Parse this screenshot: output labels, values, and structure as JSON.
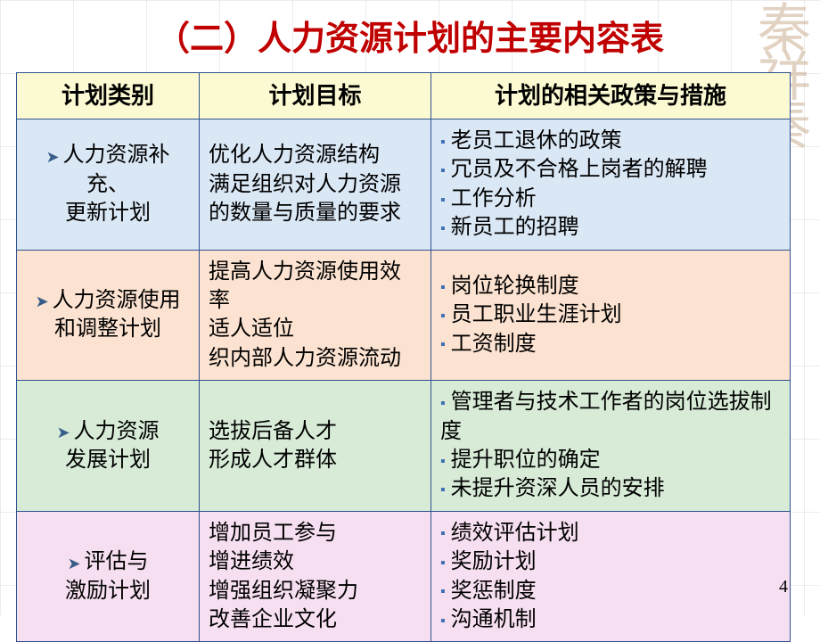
{
  "title": "（二）人力资源计划的主要内容表",
  "page_number": "4",
  "columns": {
    "c1": "计划类别",
    "c2": "计划目标",
    "c3": "计划的相关政策与措施"
  },
  "rows": [
    {
      "row_bg": "#dae7f5",
      "category_lines": [
        "人力资源补充、",
        "更新计划"
      ],
      "goals": [
        "优化人力资源结构",
        "满足组织对人力资源的数量与质量的要求"
      ],
      "policies": [
        "老员工退休的政策",
        "冗员及不合格上岗者的解聘",
        "工作分析",
        "新员工的招聘"
      ]
    },
    {
      "row_bg": "#fce2d0",
      "category_lines": [
        "人力资源使用",
        "和调整计划"
      ],
      "goals": [
        "提高人力资源使用效率",
        "适人适位",
        "织内部人力资源流动"
      ],
      "policies": [
        "岗位轮换制度",
        "员工职业生涯计划",
        "工资制度"
      ]
    },
    {
      "row_bg": "#d7ebd7",
      "category_lines": [
        "人力资源",
        "发展计划"
      ],
      "goals": [
        "选拔后备人才",
        "形成人才群体"
      ],
      "policies": [
        "管理者与技术工作者的岗位选拔制度",
        "提升职位的确定",
        "未提升资深人员的安排"
      ]
    },
    {
      "row_bg": "#f6dff0",
      "category_lines": [
        "评估与",
        "激励计划"
      ],
      "goals": [
        "增加员工参与",
        "增进绩效",
        "增强组织凝聚力",
        "改善企业文化"
      ],
      "policies": [
        "绩效评估计划",
        "奖励计划",
        "奖惩制度",
        "沟通机制"
      ]
    }
  ],
  "arrow_glyph": "➤",
  "square_glyph": "▪",
  "colors": {
    "title": "#c00000",
    "border": "#2f528f",
    "header_bg": "#fcfad2",
    "arrow": "#385d8a",
    "square": "#3e6fb5"
  }
}
